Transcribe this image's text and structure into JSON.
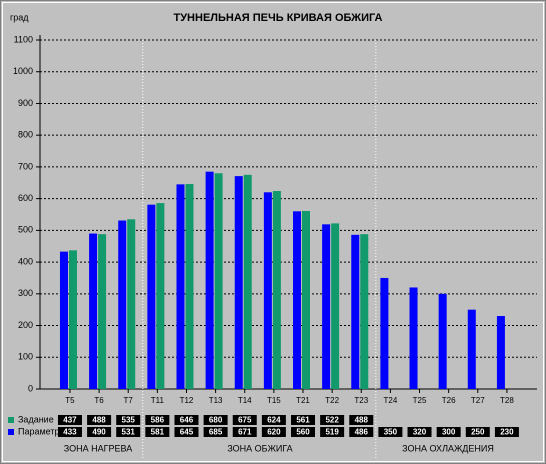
{
  "chart_data": {
    "type": "bar",
    "title": "ТУННЕЛЬНАЯ ПЕЧЬ   КРИВАЯ ОБЖИГА",
    "y_label": "град",
    "categories": [
      "T5",
      "T6",
      "T7",
      "T11",
      "T12",
      "T13",
      "T14",
      "T15",
      "T21",
      "T22",
      "T23",
      "T24",
      "T25",
      "T26",
      "T27",
      "T28"
    ],
    "series": [
      {
        "name": "Задание",
        "color": "#129a6c",
        "values": [
          437,
          488,
          535,
          586,
          646,
          680,
          675,
          624,
          561,
          522,
          488,
          null,
          null,
          null,
          null,
          null
        ]
      },
      {
        "name": "Параметр",
        "color": "#0000ff",
        "values": [
          433,
          490,
          531,
          581,
          645,
          685,
          671,
          620,
          560,
          519,
          486,
          350,
          320,
          300,
          250,
          230
        ]
      }
    ],
    "ylim": [
      0,
      1100
    ],
    "yticks": [
      0,
      100,
      200,
      300,
      400,
      500,
      600,
      700,
      800,
      900,
      1000,
      1100
    ],
    "grid": true,
    "zones": [
      "ЗОНА НАГРЕВА",
      "ЗОНА ОБЖИГА",
      "ЗОНА ОХЛАЖДЕНИЯ"
    ]
  }
}
